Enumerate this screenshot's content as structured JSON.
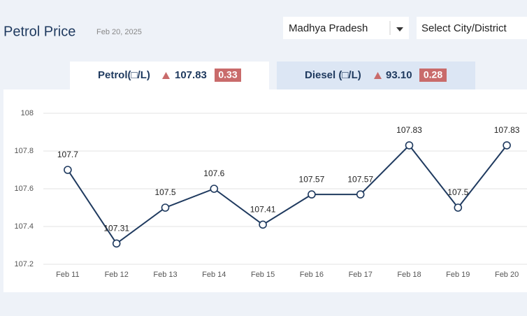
{
  "header": {
    "title": "Petrol Price",
    "date": "Feb 20, 2025",
    "state": "Madhya Pradesh",
    "city": "Select City/District"
  },
  "tabs": [
    {
      "label": "Petrol(□/L)",
      "price": "107.83",
      "change": "0.33"
    },
    {
      "label": "Diesel (□/L)",
      "price": "93.10",
      "change": "0.28"
    }
  ],
  "chart_data": {
    "type": "line",
    "categories": [
      "Feb 11",
      "Feb 12",
      "Feb 13",
      "Feb 14",
      "Feb 15",
      "Feb 16",
      "Feb 17",
      "Feb 18",
      "Feb 19",
      "Feb 20"
    ],
    "series": [
      {
        "color": "#1f3a5f",
        "values": [
          107.7,
          107.31,
          107.5,
          107.6,
          107.41,
          107.57,
          107.57,
          107.83,
          107.5,
          107.83
        ]
      }
    ],
    "ylim": [
      107.2,
      108
    ],
    "yticks": [
      107.2,
      107.4,
      107.6,
      107.8,
      108
    ],
    "grid": true
  }
}
